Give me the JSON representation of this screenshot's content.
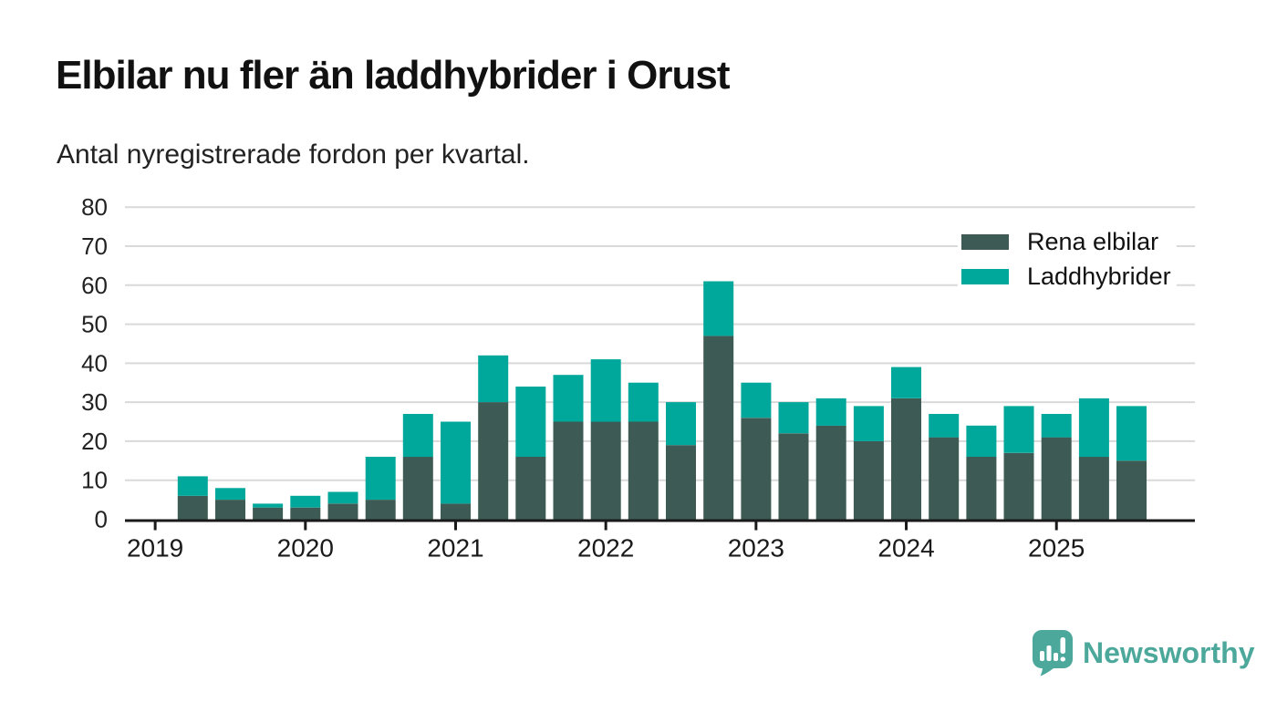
{
  "header": {
    "title": "Elbilar nu fler än laddhybrider i Orust",
    "subtitle": "Antal nyregistrerade fordon per kvartal."
  },
  "chart_data": {
    "type": "bar",
    "stacked": true,
    "title": "Elbilar nu fler än laddhybrider i Orust",
    "subtitle": "Antal nyregistrerade fordon per kvartal.",
    "xlabel": "",
    "ylabel": "",
    "ylim": [
      0,
      80
    ],
    "yticks": [
      0,
      10,
      20,
      30,
      40,
      50,
      60,
      70,
      80
    ],
    "grid": true,
    "legend_position": "top-right",
    "categories": [
      "2019 Q2",
      "2019 Q3",
      "2019 Q4",
      "2020 Q1",
      "2020 Q2",
      "2020 Q3",
      "2020 Q4",
      "2021 Q1",
      "2021 Q2",
      "2021 Q3",
      "2021 Q4",
      "2022 Q1",
      "2022 Q2",
      "2022 Q3",
      "2022 Q4",
      "2023 Q1",
      "2023 Q2",
      "2023 Q3",
      "2023 Q4",
      "2024 Q1",
      "2024 Q2",
      "2024 Q3",
      "2024 Q4",
      "2025 Q1",
      "2025 Q2",
      "2025 Q3"
    ],
    "x_year_labels": [
      "2019",
      "2020",
      "2021",
      "2022",
      "2023",
      "2024",
      "2025"
    ],
    "series": [
      {
        "name": "Rena elbilar",
        "color": "#3d5b54",
        "values": [
          6,
          5,
          3,
          3,
          4,
          5,
          16,
          4,
          30,
          16,
          25,
          25,
          25,
          19,
          47,
          26,
          22,
          24,
          20,
          31,
          21,
          16,
          17,
          21,
          16,
          15
        ]
      },
      {
        "name": "Laddhybrider",
        "color": "#00a79b",
        "values": [
          5,
          3,
          1,
          3,
          3,
          11,
          11,
          21,
          12,
          18,
          12,
          16,
          10,
          11,
          14,
          9,
          8,
          7,
          9,
          8,
          6,
          8,
          12,
          6,
          15,
          14
        ]
      }
    ],
    "totals": [
      11,
      8,
      4,
      6,
      7,
      16,
      27,
      25,
      42,
      34,
      37,
      41,
      35,
      30,
      61,
      35,
      30,
      31,
      29,
      39,
      27,
      24,
      29,
      27,
      31,
      29
    ]
  },
  "colors": {
    "axis": "#1a1a1a",
    "grid": "#d9d9d9",
    "tick_text": "#222222",
    "brand": "#4da89c"
  },
  "footer": {
    "brand": "Newsworthy"
  }
}
